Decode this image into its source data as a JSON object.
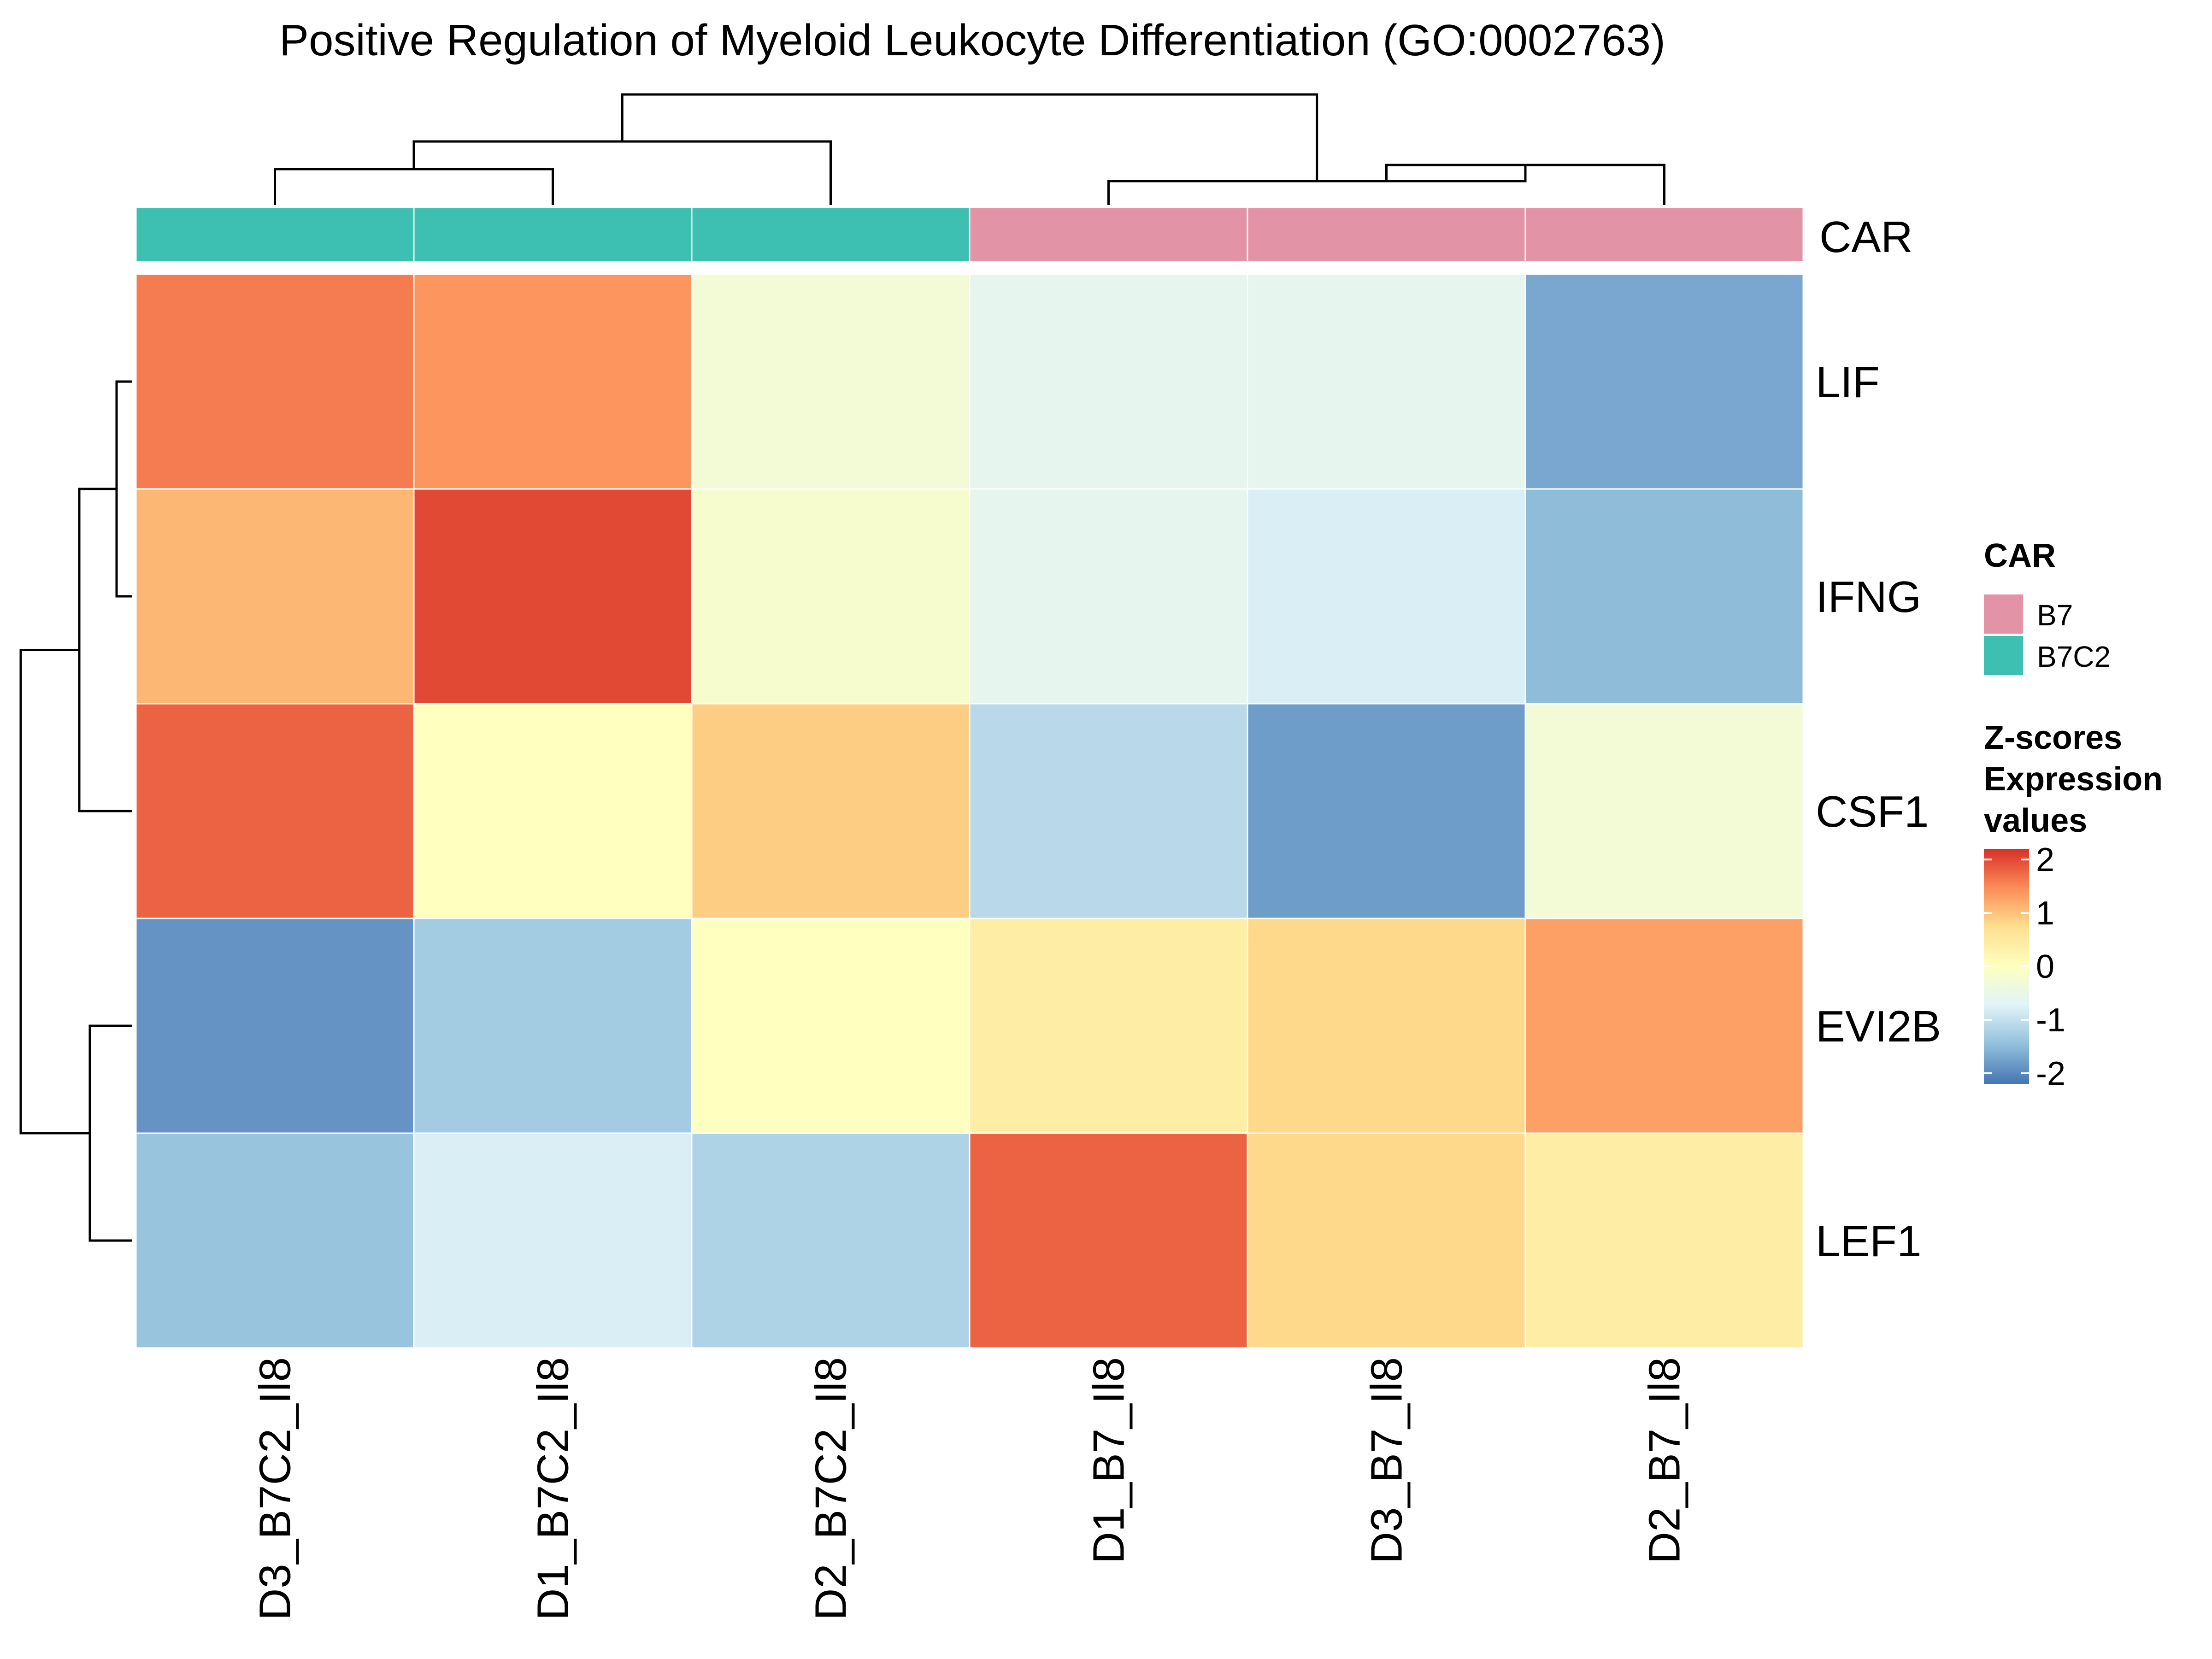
{
  "chart_data": {
    "type": "heatmap",
    "title": "Positive Regulation of Myeloid Leukocyte Differentiation (GO:0002763)",
    "columns": [
      "D3_B7C2_Il8",
      "D1_B7C2_Il8",
      "D2_B7C2_Il8",
      "D1_B7_Il8",
      "D3_B7_Il8",
      "D2_B7_Il8"
    ],
    "rows": [
      "LIF",
      "IFNG",
      "CSF1",
      "EVI2B",
      "LEF1"
    ],
    "values": [
      [
        1.6,
        1.4,
        -0.3,
        -0.6,
        -0.6,
        -1.7
      ],
      [
        1.1,
        2.0,
        -0.2,
        -0.6,
        -0.8,
        -1.5
      ],
      [
        1.8,
        0.0,
        0.9,
        -1.1,
        -1.8,
        -0.3
      ],
      [
        -1.9,
        -1.3,
        0.0,
        0.4,
        0.8,
        1.3
      ],
      [
        -1.4,
        -0.8,
        -1.2,
        1.8,
        0.8,
        0.4
      ]
    ],
    "annotation": {
      "name": "CAR",
      "column_groups": [
        "B7C2",
        "B7C2",
        "B7C2",
        "B7",
        "B7",
        "B7"
      ],
      "legend_title": "CAR",
      "levels": [
        {
          "label": "B7",
          "color": "#E293A6"
        },
        {
          "label": "B7C2",
          "color": "#3DBFB1"
        }
      ]
    },
    "color_legend": {
      "title_lines": [
        "Z-scores",
        "Expression",
        "values"
      ],
      "ticks": [
        "2",
        "1",
        "0",
        "-1",
        "-2"
      ],
      "range": [
        -2.2,
        2.2
      ],
      "palette": [
        "#4575B4",
        "#91BFDB",
        "#E0F3F8",
        "#FFFFBF",
        "#FEE090",
        "#FC8D59",
        "#D73027"
      ]
    },
    "column_dendrogram": true,
    "row_dendrogram": true,
    "legend_position": "right"
  }
}
